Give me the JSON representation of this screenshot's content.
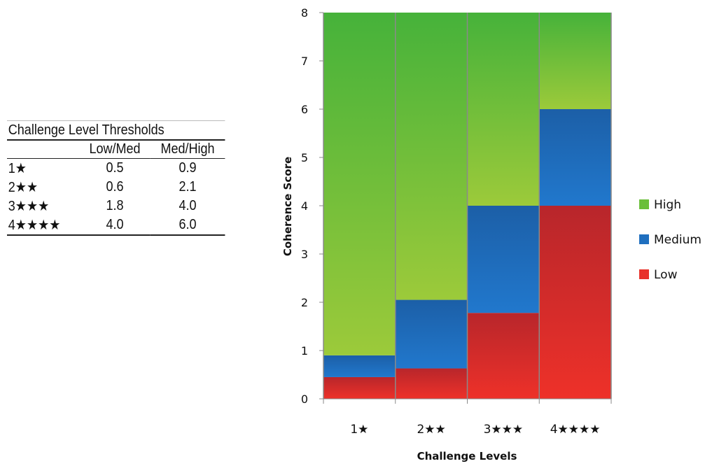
{
  "threshold_table": {
    "caption": "Challenge Level Thresholds",
    "columns": [
      "",
      "Low/Med",
      "Med/High"
    ],
    "rows": [
      {
        "level": "1★",
        "low_med": "0.5",
        "med_high": "0.9"
      },
      {
        "level": "2★★",
        "low_med": "0.6",
        "med_high": "2.1"
      },
      {
        "level": "3★★★",
        "low_med": "1.8",
        "med_high": "4.0"
      },
      {
        "level": "4★★★★",
        "low_med": "4.0",
        "med_high": "6.0"
      }
    ]
  },
  "chart_data": {
    "type": "bar",
    "stacked": true,
    "categories": [
      "1★",
      "2★★",
      "3★★★",
      "4★★★★"
    ],
    "series": [
      {
        "name": "Low",
        "values": [
          0.45,
          0.63,
          1.78,
          4.0
        ],
        "color": "#e8312a"
      },
      {
        "name": "Medium",
        "values": [
          0.45,
          1.42,
          2.22,
          2.0
        ],
        "color": "#1f6fbf"
      },
      {
        "name": "High",
        "values": [
          7.1,
          5.95,
          4.0,
          2.0
        ],
        "color": "#6abf3a"
      }
    ],
    "xlabel": "Challenge Levels",
    "ylabel": "Coherence Score",
    "ylim": [
      0,
      8
    ],
    "yticks": [
      "0",
      "1",
      "2",
      "3",
      "4",
      "5",
      "6",
      "7",
      "8"
    ],
    "legend_order": [
      "High",
      "Medium",
      "Low"
    ],
    "legend_position": "right",
    "grid": false
  }
}
